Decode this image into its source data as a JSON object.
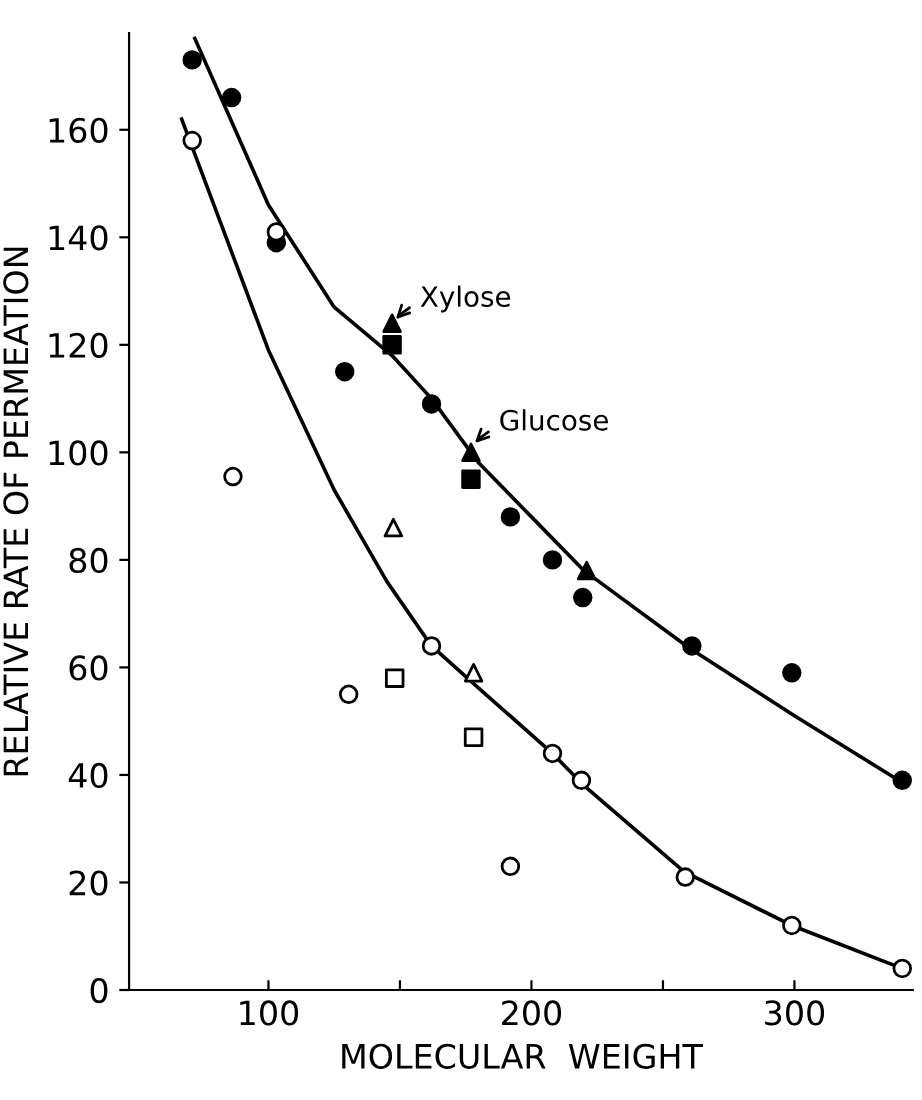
{
  "chart_data": {
    "type": "scatter",
    "xlabel": "MOLECULAR  WEIGHT",
    "ylabel": "RELATIVE RATE OF PERMEATION",
    "xlim": [
      47,
      345
    ],
    "ylim": [
      0,
      178
    ],
    "xticks": [
      100,
      {
        "value": 150,
        "label": null
      },
      200,
      {
        "value": 250,
        "label": null
      },
      300
    ],
    "yticks": [
      0,
      20,
      40,
      60,
      80,
      100,
      120,
      140,
      160
    ],
    "grid": false,
    "legend": false,
    "series": [
      {
        "marker": "circle",
        "color": "#000000",
        "x": [
          71,
          86,
          103,
          129,
          162,
          192,
          208,
          219.5,
          261,
          299,
          341
        ],
        "values": [
          173,
          166,
          139,
          115,
          109,
          88,
          80,
          73,
          64,
          59,
          39
        ]
      },
      {
        "marker": "triangle",
        "color": "#000000",
        "x": [
          147,
          177,
          221
        ],
        "values": [
          124,
          100,
          78
        ]
      },
      {
        "marker": "square",
        "color": "#000000",
        "x": [
          147,
          177
        ],
        "values": [
          120,
          95
        ]
      },
      {
        "marker": "circle",
        "color": "#ffffff",
        "x": [
          71,
          86.5,
          103,
          130.5,
          162,
          192,
          208,
          219,
          258.5,
          299,
          341
        ],
        "values": [
          158,
          95.5,
          141,
          55,
          64,
          23,
          44,
          39,
          21,
          12,
          4
        ]
      },
      {
        "marker": "square",
        "color": "#ffffff",
        "x": [
          148,
          178
        ],
        "values": [
          58,
          47
        ]
      },
      {
        "marker": "triangle",
        "color": "#ffffff",
        "x": [
          147.5,
          178
        ],
        "values": [
          86,
          59
        ]
      },
      {
        "type": "line",
        "marker": "none",
        "color": "#000000",
        "x": [
          72,
          100,
          125,
          147,
          162,
          180,
          200,
          220,
          260,
          300,
          341
        ],
        "values": [
          177,
          146,
          127,
          118,
          110,
          98,
          88,
          78,
          63.6,
          51,
          38.6
        ]
      },
      {
        "type": "line",
        "marker": "none",
        "color": "#000000",
        "x": [
          67,
          100,
          125,
          145,
          162,
          178,
          208,
          220,
          258,
          299,
          341
        ],
        "values": [
          162,
          119,
          93,
          76,
          64,
          57,
          44,
          38,
          22,
          12,
          4
        ]
      }
    ],
    "annotations": [
      {
        "text": "Xylose",
        "x": 147,
        "y": 124
      },
      {
        "text": "Glucose",
        "x": 177,
        "y": 101
      }
    ]
  }
}
